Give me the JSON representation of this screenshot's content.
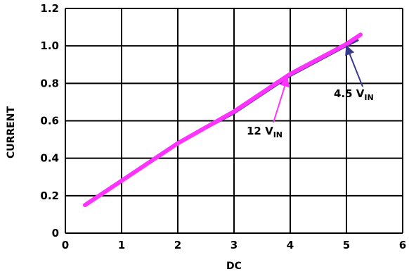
{
  "chart_data": {
    "type": "line",
    "title": "",
    "xlabel": "DC",
    "ylabel": "CURRENT",
    "xlim": [
      0,
      6
    ],
    "ylim": [
      0,
      1.2
    ],
    "x_ticks": [
      "0",
      "1",
      "2",
      "3",
      "4",
      "5",
      "6"
    ],
    "y_ticks": [
      "0",
      "0.2",
      "0.4",
      "0.6",
      "0.8",
      "1.0",
      "1.2"
    ],
    "grid": true,
    "series": [
      {
        "name": "4.5 V_IN",
        "color": "#3a3a8c",
        "x": [
          0.35,
          1.0,
          2.0,
          3.0,
          4.0,
          5.0,
          5.2
        ],
        "y": [
          0.15,
          0.28,
          0.48,
          0.64,
          0.84,
          1.0,
          1.03
        ]
      },
      {
        "name": "12 V_IN",
        "color": "#ff33ff",
        "x": [
          0.35,
          1.0,
          2.0,
          3.0,
          4.0,
          5.0,
          5.25
        ],
        "y": [
          0.15,
          0.28,
          0.48,
          0.65,
          0.85,
          1.01,
          1.06
        ]
      }
    ],
    "annotations": [
      {
        "text": "4.5 V",
        "sub": "IN",
        "target_x": 5.0,
        "target_y": 1.0
      },
      {
        "text": "12 V",
        "sub": "IN",
        "target_x": 3.95,
        "target_y": 0.83
      }
    ]
  }
}
